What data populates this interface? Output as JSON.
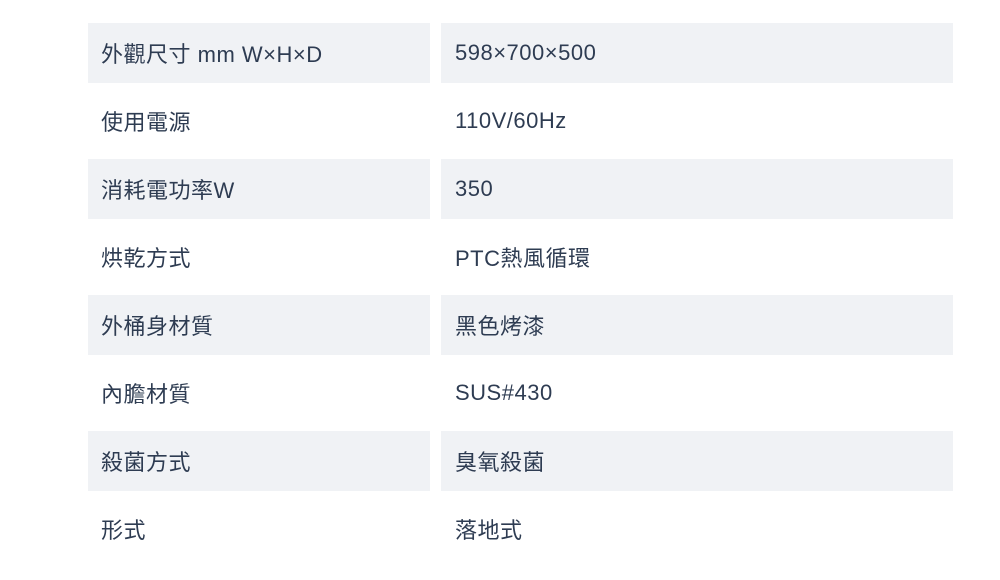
{
  "table": {
    "rows": [
      {
        "label": "外觀尺寸 mm W×H×D",
        "value": "598×700×500"
      },
      {
        "label": "使用電源",
        "value": "110V/60Hz"
      },
      {
        "label": "消耗電功率W",
        "value": "350"
      },
      {
        "label": "烘乾方式",
        "value": "PTC熱風循環"
      },
      {
        "label": "外桶身材質",
        "value": "黑色烤漆"
      },
      {
        "label": "內膽材質",
        "value": "SUS#430"
      },
      {
        "label": "殺菌方式",
        "value": "臭氧殺菌"
      },
      {
        "label": "形式",
        "value": "落地式"
      }
    ]
  },
  "colors": {
    "background": "#ffffff",
    "row_shade": "#f0f2f5",
    "text": "#2e3c52"
  }
}
